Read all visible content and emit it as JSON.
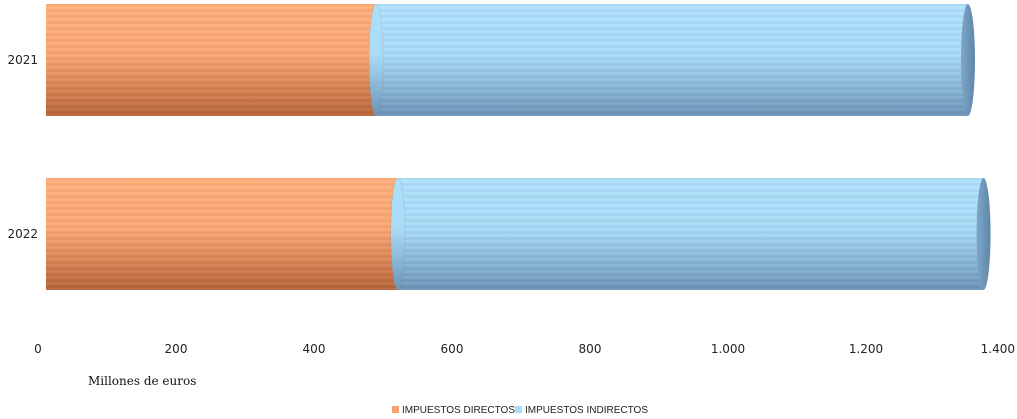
{
  "chart_data": {
    "type": "bar",
    "orientation": "horizontal",
    "stacked": true,
    "categories": [
      "2021",
      "2022"
    ],
    "series": [
      {
        "name": "IMPUESTOS DIRECTOS",
        "values": [
          488,
          520
        ],
        "color": "#F8A070"
      },
      {
        "name": "IMPUESTOS INDIRECTOS",
        "values": [
          875,
          866
        ],
        "color": "#A8DCF8"
      }
    ],
    "xlim": [
      0,
      1400
    ],
    "xticks": [
      "0",
      "200",
      "400",
      "600",
      "800",
      "1.000",
      "1.200",
      "1.400"
    ],
    "xlabel": "Millones de euros",
    "legend_position": "bottom"
  }
}
